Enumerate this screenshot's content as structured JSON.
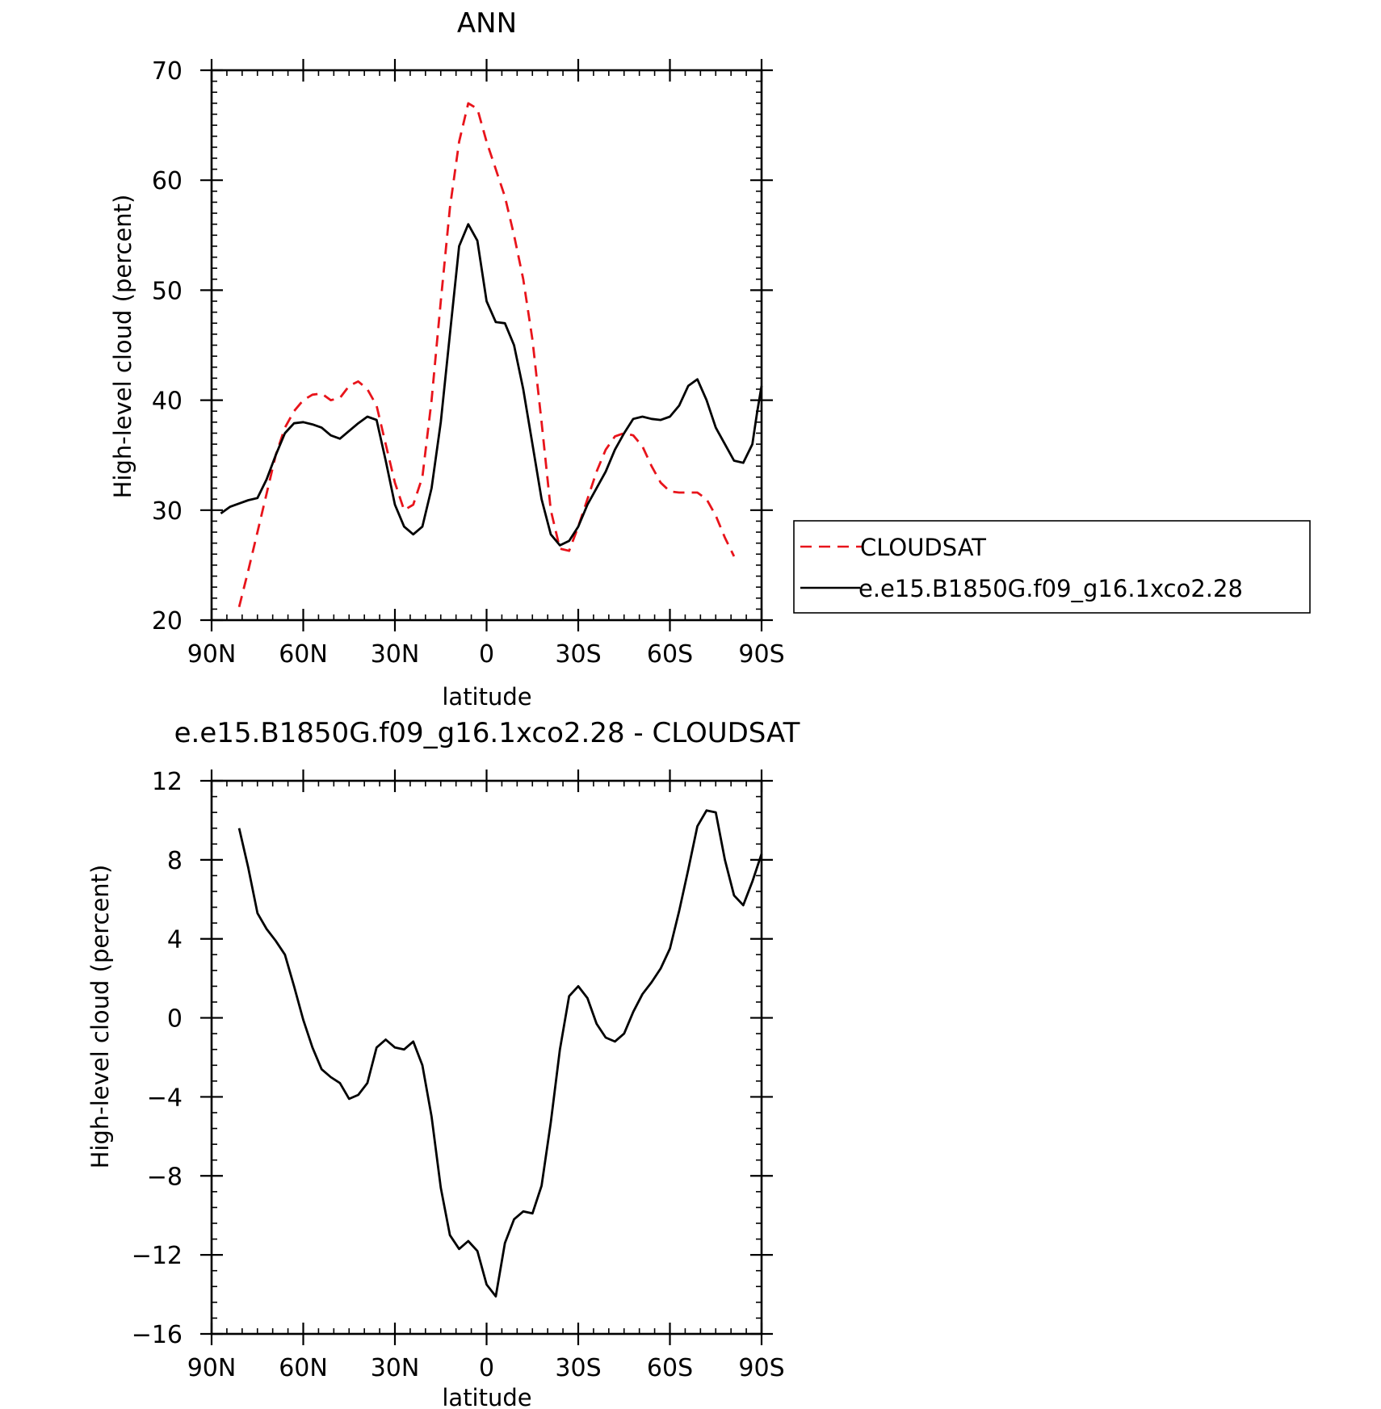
{
  "chart_data": [
    {
      "type": "line",
      "title": "ANN",
      "xlabel": "latitude",
      "ylabel": "High-level cloud (percent)",
      "xlim": [
        -90,
        90
      ],
      "ylim": [
        20,
        70
      ],
      "x_ticks": [
        {
          "value": -90,
          "label": "90N"
        },
        {
          "value": -60,
          "label": "60N"
        },
        {
          "value": -30,
          "label": "30N"
        },
        {
          "value": 0,
          "label": "0"
        },
        {
          "value": 30,
          "label": "30S"
        },
        {
          "value": 60,
          "label": "60S"
        },
        {
          "value": 90,
          "label": "90S"
        }
      ],
      "y_ticks": [
        20,
        30,
        40,
        50,
        60,
        70
      ],
      "legend": "right",
      "series": [
        {
          "name": "CLOUDSAT",
          "color": "#e8141b",
          "dash": "dashed",
          "points": [
            [
              -81,
              21.2
            ],
            [
              -78,
              24.5
            ],
            [
              -75,
              28.0
            ],
            [
              -72,
              31.5
            ],
            [
              -69,
              35.0
            ],
            [
              -66,
              37.5
            ],
            [
              -63,
              39.0
            ],
            [
              -60,
              40.0
            ],
            [
              -57,
              40.5
            ],
            [
              -54,
              40.6
            ],
            [
              -51,
              40.0
            ],
            [
              -48,
              40.2
            ],
            [
              -45,
              41.3
            ],
            [
              -42,
              41.7
            ],
            [
              -39,
              41.0
            ],
            [
              -36,
              39.5
            ],
            [
              -33,
              36.0
            ],
            [
              -30,
              32.5
            ],
            [
              -27,
              30.0
            ],
            [
              -24,
              30.5
            ],
            [
              -21,
              33.0
            ],
            [
              -18,
              40.0
            ],
            [
              -15,
              49.0
            ],
            [
              -12,
              57.5
            ],
            [
              -9,
              63.5
            ],
            [
              -6,
              67.0
            ],
            [
              -3,
              66.5
            ],
            [
              0,
              63.5
            ],
            [
              3,
              61.0
            ],
            [
              6,
              58.5
            ],
            [
              9,
              55.0
            ],
            [
              12,
              51.0
            ],
            [
              15,
              45.5
            ],
            [
              18,
              38.0
            ],
            [
              21,
              30.0
            ],
            [
              24,
              26.5
            ],
            [
              27,
              26.3
            ],
            [
              30,
              28.5
            ],
            [
              33,
              31.0
            ],
            [
              36,
              33.5
            ],
            [
              39,
              35.5
            ],
            [
              42,
              36.7
            ],
            [
              45,
              37.0
            ],
            [
              48,
              36.8
            ],
            [
              51,
              35.8
            ],
            [
              54,
              34.0
            ],
            [
              57,
              32.5
            ],
            [
              60,
              31.7
            ],
            [
              63,
              31.6
            ],
            [
              66,
              31.6
            ],
            [
              69,
              31.6
            ],
            [
              72,
              31.0
            ],
            [
              75,
              29.5
            ],
            [
              78,
              27.5
            ],
            [
              81,
              25.8
            ]
          ]
        },
        {
          "name": "e.e15.B1850G.f09_g16.1xco2.28",
          "color": "#000000",
          "dash": "solid",
          "points": [
            [
              -87,
              29.7
            ],
            [
              -84,
              30.3
            ],
            [
              -81,
              30.6
            ],
            [
              -78,
              30.9
            ],
            [
              -75,
              31.1
            ],
            [
              -72,
              32.8
            ],
            [
              -69,
              35.0
            ],
            [
              -66,
              37.0
            ],
            [
              -63,
              37.9
            ],
            [
              -60,
              38.0
            ],
            [
              -57,
              37.8
            ],
            [
              -54,
              37.5
            ],
            [
              -51,
              36.8
            ],
            [
              -48,
              36.5
            ],
            [
              -45,
              37.2
            ],
            [
              -42,
              37.9
            ],
            [
              -39,
              38.5
            ],
            [
              -36,
              38.2
            ],
            [
              -33,
              34.5
            ],
            [
              -30,
              30.5
            ],
            [
              -27,
              28.5
            ],
            [
              -24,
              27.8
            ],
            [
              -21,
              28.5
            ],
            [
              -18,
              32.0
            ],
            [
              -15,
              38.0
            ],
            [
              -12,
              46.0
            ],
            [
              -9,
              54.0
            ],
            [
              -6,
              56.0
            ],
            [
              -3,
              54.5
            ],
            [
              0,
              49.0
            ],
            [
              3,
              47.1
            ],
            [
              6,
              47.0
            ],
            [
              9,
              45.0
            ],
            [
              12,
              41.0
            ],
            [
              15,
              36.0
            ],
            [
              18,
              31.0
            ],
            [
              21,
              27.8
            ],
            [
              24,
              26.8
            ],
            [
              27,
              27.2
            ],
            [
              30,
              28.5
            ],
            [
              33,
              30.5
            ],
            [
              36,
              32.0
            ],
            [
              39,
              33.5
            ],
            [
              42,
              35.5
            ],
            [
              45,
              37.0
            ],
            [
              48,
              38.3
            ],
            [
              51,
              38.5
            ],
            [
              54,
              38.3
            ],
            [
              57,
              38.2
            ],
            [
              60,
              38.5
            ],
            [
              63,
              39.5
            ],
            [
              66,
              41.3
            ],
            [
              69,
              41.9
            ],
            [
              72,
              40.0
            ],
            [
              75,
              37.5
            ],
            [
              78,
              36.0
            ],
            [
              81,
              34.5
            ],
            [
              84,
              34.3
            ],
            [
              87,
              36.0
            ],
            [
              88.5,
              38.8
            ],
            [
              90,
              41.3
            ]
          ]
        }
      ]
    },
    {
      "type": "line",
      "title": "e.e15.B1850G.f09_g16.1xco2.28 - CLOUDSAT",
      "xlabel": "latitude",
      "ylabel": "High-level cloud (percent)",
      "xlim": [
        -90,
        90
      ],
      "ylim": [
        -16,
        12
      ],
      "x_ticks": [
        {
          "value": -90,
          "label": "90N"
        },
        {
          "value": -60,
          "label": "60N"
        },
        {
          "value": -30,
          "label": "30N"
        },
        {
          "value": 0,
          "label": "0"
        },
        {
          "value": 30,
          "label": "30S"
        },
        {
          "value": 60,
          "label": "60S"
        },
        {
          "value": 90,
          "label": "90S"
        }
      ],
      "y_ticks": [
        -16,
        -12,
        -8,
        -4,
        0,
        4,
        8,
        12
      ],
      "series": [
        {
          "color": "#000000",
          "dash": "solid",
          "points": [
            [
              -81,
              9.6
            ],
            [
              -78,
              7.6
            ],
            [
              -75,
              5.3
            ],
            [
              -72,
              4.5
            ],
            [
              -69,
              3.9
            ],
            [
              -66,
              3.2
            ],
            [
              -63,
              1.6
            ],
            [
              -60,
              -0.1
            ],
            [
              -57,
              -1.5
            ],
            [
              -54,
              -2.6
            ],
            [
              -51,
              -3.0
            ],
            [
              -48,
              -3.3
            ],
            [
              -45,
              -4.1
            ],
            [
              -42,
              -3.9
            ],
            [
              -39,
              -3.3
            ],
            [
              -36,
              -1.5
            ],
            [
              -33,
              -1.1
            ],
            [
              -30,
              -1.5
            ],
            [
              -27,
              -1.6
            ],
            [
              -24,
              -1.2
            ],
            [
              -21,
              -2.4
            ],
            [
              -18,
              -5.0
            ],
            [
              -15,
              -8.6
            ],
            [
              -12,
              -11.0
            ],
            [
              -9,
              -11.7
            ],
            [
              -6,
              -11.3
            ],
            [
              -3,
              -11.8
            ],
            [
              0,
              -13.5
            ],
            [
              3,
              -14.1
            ],
            [
              6,
              -11.4
            ],
            [
              9,
              -10.2
            ],
            [
              12,
              -9.8
            ],
            [
              15,
              -9.9
            ],
            [
              18,
              -8.5
            ],
            [
              21,
              -5.3
            ],
            [
              24,
              -1.6
            ],
            [
              27,
              1.1
            ],
            [
              30,
              1.6
            ],
            [
              33,
              1.0
            ],
            [
              36,
              -0.3
            ],
            [
              39,
              -1.0
            ],
            [
              42,
              -1.2
            ],
            [
              45,
              -0.8
            ],
            [
              48,
              0.3
            ],
            [
              51,
              1.2
            ],
            [
              54,
              1.8
            ],
            [
              57,
              2.5
            ],
            [
              60,
              3.5
            ],
            [
              63,
              5.4
            ],
            [
              66,
              7.5
            ],
            [
              69,
              9.7
            ],
            [
              72,
              10.5
            ],
            [
              75,
              10.4
            ],
            [
              78,
              8.0
            ],
            [
              81,
              6.2
            ],
            [
              84,
              5.7
            ],
            [
              87,
              6.9
            ],
            [
              90,
              8.3
            ]
          ]
        }
      ]
    }
  ]
}
